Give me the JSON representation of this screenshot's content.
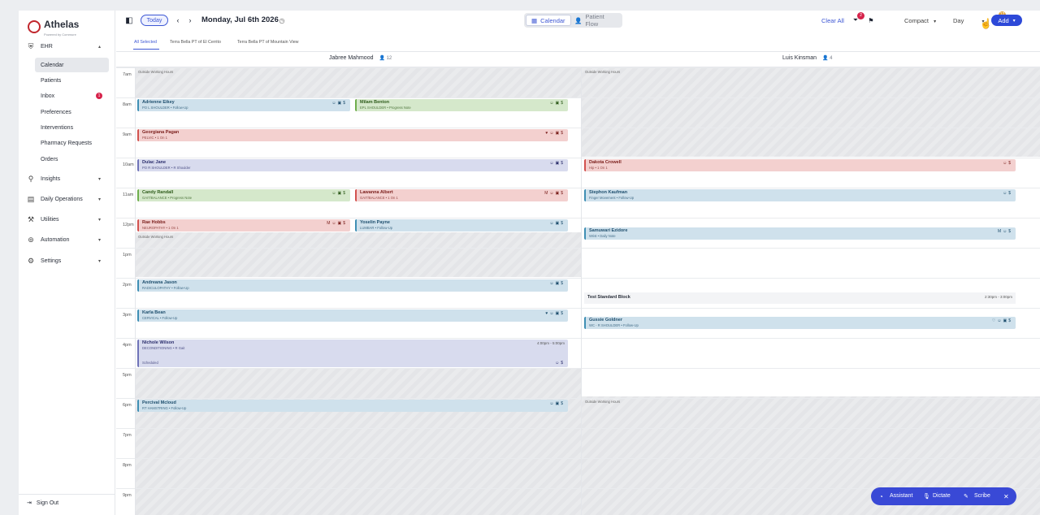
{
  "brand": {
    "name": "Athelas",
    "tagline": "Powered by Commure"
  },
  "sidebar": {
    "sections": [
      {
        "label": "EHR",
        "icon": "shield-icon",
        "chevron": "▴"
      },
      {
        "label": "Insights",
        "icon": "lightbulb-icon",
        "chevron": "▾"
      },
      {
        "label": "Daily Operations",
        "icon": "calendar-icon",
        "chevron": "▾"
      },
      {
        "label": "Utilities",
        "icon": "wrench-icon",
        "chevron": "▾"
      },
      {
        "label": "Automation",
        "icon": "automation-icon",
        "chevron": "▾"
      },
      {
        "label": "Settings",
        "icon": "gear-icon",
        "chevron": "▾"
      }
    ],
    "ehr_items": [
      {
        "label": "Calendar"
      },
      {
        "label": "Patients"
      },
      {
        "label": "Inbox",
        "badge": "1"
      },
      {
        "label": "Preferences"
      },
      {
        "label": "Interventions"
      },
      {
        "label": "Pharmacy Requests"
      },
      {
        "label": "Orders"
      }
    ],
    "sign_out": "Sign Out"
  },
  "toolbar": {
    "today": "Today",
    "date": "Monday, Jul 6th 2026",
    "view_calendar": "Calendar",
    "view_patient_flow": "Patient Flow",
    "clear_all": "Clear All",
    "filter_badge": "2",
    "density": "Compact",
    "range": "Day",
    "notif_badge": "12",
    "add": "Add"
  },
  "locations": [
    "All Selected",
    "Terra Bella PT of El Cerrito",
    "Terra Bella PT of Mountain View"
  ],
  "providers": [
    {
      "name": "Jabree Mahmood",
      "count": "12"
    },
    {
      "name": "Luis Kinsman",
      "count": "4"
    }
  ],
  "hours": [
    "7am",
    "8am",
    "9am",
    "10am",
    "11am",
    "12pm",
    "1pm",
    "2pm",
    "3pm",
    "4pm",
    "5pm",
    "6pm",
    "7pm",
    "8pm",
    "9pm"
  ],
  "outside_hours": "Outside Working Hours",
  "appointments": [
    {
      "name": "Adrienne Eikey",
      "desc": "PO L SHOULDER • Follow-Up",
      "icons": "☺▣$"
    },
    {
      "name": "Milam Benton",
      "desc": "EPL SHOULDER • Progress Note",
      "icons": "☺▣$"
    },
    {
      "name": "Georgiana Pagan",
      "desc": "PELVIC • 1 On 1",
      "icons": "♥☺▣$"
    },
    {
      "name": "Dulac Jane",
      "desc": "PO R SHOULDER • R Shoulder",
      "icons": "☺▣$"
    },
    {
      "name": "Candy Randall",
      "desc": "GAIT/BALANCE • Progress Note",
      "icons": "☺▣$"
    },
    {
      "name": "Lawanna Albert",
      "desc": "GAIT/BALANCE • 1 On 1",
      "icons": "M☺▣$"
    },
    {
      "name": "Rae Hobbs",
      "desc": "NEUROPATHY • 1 On 1",
      "icons": "M☺▣$"
    },
    {
      "name": "Yoselin Payne",
      "desc": "LUMBAR • Follow-Up",
      "icons": "☺▣$"
    },
    {
      "name": "Andreana Jason",
      "desc": "RADICULOPATHY • Follow-Up",
      "icons": "☺▣$"
    },
    {
      "name": "Karla Bean",
      "desc": "CERVICAL • Follow-Up",
      "icons": "♥☺▣$"
    },
    {
      "name": "Nichole Wilson",
      "desc": "DECONDITIONING • R Gait",
      "icons": "☺$",
      "time": "4:00pm - 5:00pm",
      "status": "Scheduled"
    },
    {
      "name": "Percival Mcloud",
      "desc": "RT HAMSTRING • Follow-Up",
      "icons": "☺▣$"
    },
    {
      "name": "Dakota Crowell",
      "desc": "Hip • 1 On 1",
      "icons": "☺$"
    },
    {
      "name": "Stephon Kaufman",
      "desc": "Finger Movement • Follow-Up",
      "icons": "☺$"
    },
    {
      "name": "Samuwari Ezidore",
      "desc": "Wrist • Daily Note",
      "icons": "M☺$"
    },
    {
      "name": "Gussie Goldner",
      "desc": "WC - R SHOULDER • Follow-Up",
      "icons": "♡☺▣$"
    }
  ],
  "block": {
    "name": "Test Standard Block",
    "time": "2:30pm - 3:00pm"
  },
  "assistant": {
    "assistant": "Assistant",
    "dictate": "Dictate",
    "scribe": "Scribe"
  },
  "colors": {
    "accent": "#3d57d4",
    "brand": "#c1272d",
    "badge": "#d6224a"
  }
}
